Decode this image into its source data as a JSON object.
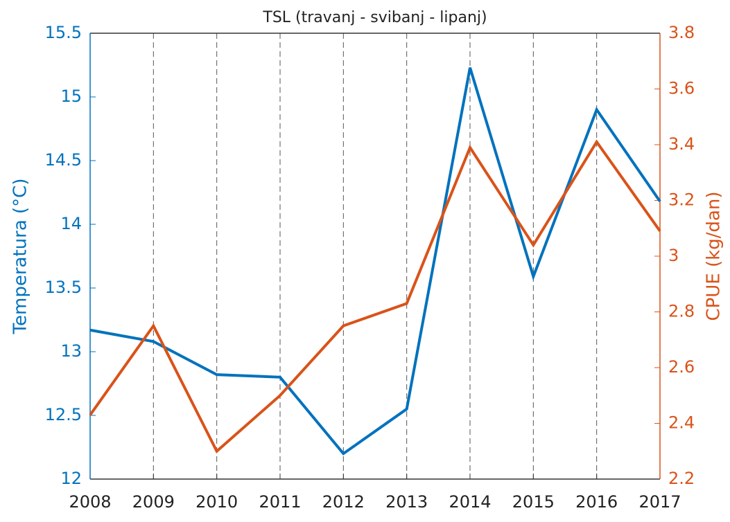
{
  "chart_data": {
    "type": "line",
    "title": "TSL (travanj - svibanj - lipanj)",
    "ylabel": "Temperatura (°C)",
    "y2label": "CPUE (kg/dan)",
    "x": [
      2008,
      2009,
      2010,
      2011,
      2012,
      2013,
      2014,
      2015,
      2016,
      2017
    ],
    "xlim": [
      2008,
      2017
    ],
    "xticks": [
      2008,
      2009,
      2010,
      2011,
      2012,
      2013,
      2014,
      2015,
      2016,
      2017
    ],
    "ylim": [
      12,
      15.5
    ],
    "yticks": [
      12,
      12.5,
      13,
      13.5,
      14,
      14.5,
      15,
      15.5
    ],
    "y2lim": [
      2.2,
      3.8
    ],
    "y2ticks": [
      2.2,
      2.4,
      2.6,
      2.8,
      3,
      3.2,
      3.4,
      3.6,
      3.8
    ],
    "xgrid": true,
    "series": [
      {
        "name": "Temperatura",
        "color": "#0072bd",
        "values": [
          13.17,
          13.08,
          12.82,
          12.8,
          12.2,
          12.55,
          15.23,
          13.59,
          14.9,
          14.18
        ]
      },
      {
        "name": "CPUE",
        "color": "#d95319",
        "axis": "y2",
        "values": [
          2.43,
          2.75,
          2.3,
          2.5,
          2.75,
          2.83,
          3.39,
          3.04,
          3.41,
          3.09
        ]
      }
    ]
  }
}
